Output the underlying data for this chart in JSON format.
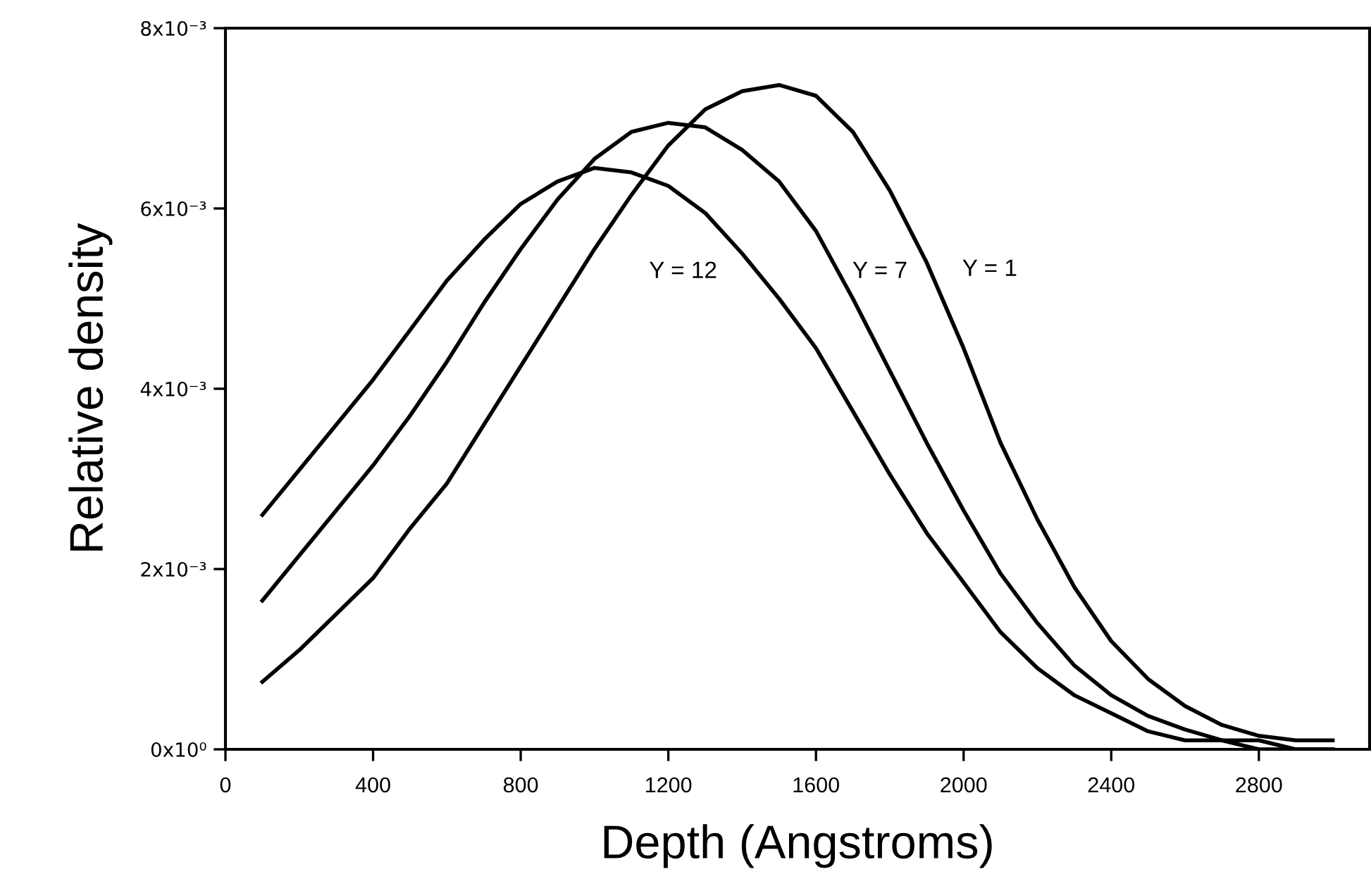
{
  "chart_data": {
    "type": "line",
    "xlabel": "Depth (Angstroms)",
    "ylabel": "Relative density",
    "x": [
      100,
      200,
      300,
      400,
      500,
      600,
      700,
      800,
      900,
      1000,
      1100,
      1200,
      1300,
      1400,
      1500,
      1600,
      1700,
      1800,
      1900,
      2000,
      2100,
      2200,
      2300,
      2400,
      2500,
      2600,
      2700,
      2800,
      2900,
      3000
    ],
    "series": [
      {
        "color": "#000000",
        "values": [
          0.0026,
          0.0031,
          0.0036,
          0.0041,
          0.00465,
          0.0052,
          0.00565,
          0.00605,
          0.0063,
          0.00645,
          0.0064,
          0.00625,
          0.00595,
          0.0055,
          0.005,
          0.00445,
          0.00375,
          0.00305,
          0.0024,
          0.00185,
          0.0013,
          0.0009,
          0.0006,
          0.0004,
          0.0002,
          0.0001,
          0.0001,
          0.0,
          0.0,
          0.0
        ]
      },
      {
        "color": "#000000",
        "values": [
          0.00165,
          0.00215,
          0.00265,
          0.00315,
          0.0037,
          0.0043,
          0.00495,
          0.00555,
          0.0061,
          0.00655,
          0.00685,
          0.00695,
          0.0069,
          0.00665,
          0.0063,
          0.00575,
          0.005,
          0.0042,
          0.0034,
          0.00265,
          0.00195,
          0.0014,
          0.00093,
          0.0006,
          0.00037,
          0.00022,
          0.0001,
          0.0001,
          0.0,
          0.0
        ]
      },
      {
        "color": "#000000",
        "values": [
          0.00075,
          0.0011,
          0.0015,
          0.0019,
          0.00245,
          0.00295,
          0.0036,
          0.00425,
          0.0049,
          0.00555,
          0.00615,
          0.0067,
          0.0071,
          0.0073,
          0.00737,
          0.00725,
          0.00685,
          0.0062,
          0.0054,
          0.00445,
          0.0034,
          0.00255,
          0.0018,
          0.0012,
          0.00078,
          0.00048,
          0.00027,
          0.00015,
          0.0001,
          0.0001
        ]
      }
    ],
    "annotations": [
      "Y = 12",
      "Y = 7",
      "Y = 1"
    ],
    "xlim": [
      0,
      3100
    ],
    "xticks": [
      0,
      400,
      800,
      1200,
      1600,
      2000,
      2400,
      2800
    ],
    "ylim": [
      0,
      0.008
    ],
    "yticks": [
      {
        "value": 0,
        "label": "0x10⁰"
      },
      {
        "value": 0.002,
        "label": "2x10⁻³"
      },
      {
        "value": 0.004,
        "label": "4x10⁻³"
      },
      {
        "value": 0.006,
        "label": "6x10⁻³"
      },
      {
        "value": 0.008,
        "label": "8x10⁻³"
      }
    ],
    "grid": false,
    "legend": false,
    "marker": "none",
    "line_style": "solid"
  }
}
